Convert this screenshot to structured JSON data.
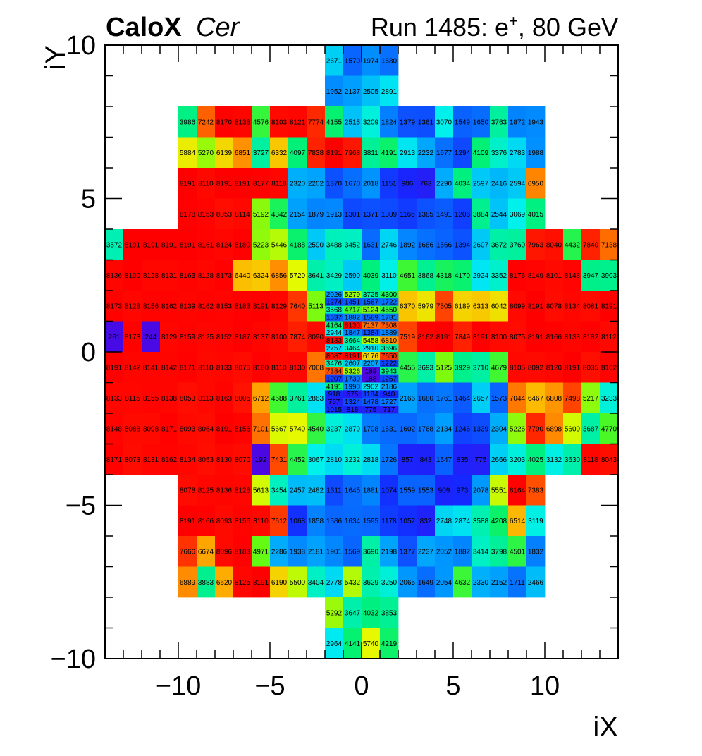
{
  "header": {
    "experiment": "CaloX",
    "channel": "Cer",
    "run_prefix": "Run 1485: e",
    "run_superscript": "+",
    "run_suffix": ", 80 GeV"
  },
  "chart_data": {
    "type": "heatmap",
    "xlabel": "iX",
    "ylabel": "iY",
    "xlim": [
      -14,
      14
    ],
    "ylim": [
      -10,
      10
    ],
    "x_ticks": [
      "−10",
      "−5",
      "0",
      "5",
      "10"
    ],
    "x_tick_values": [
      -10,
      -5,
      0,
      5,
      10
    ],
    "y_ticks": [
      "−10",
      "−5",
      "0",
      "5",
      "10"
    ],
    "y_tick_values": [
      -10,
      -5,
      0,
      5,
      10
    ],
    "color_scale": {
      "min": 0,
      "max": 8191,
      "palette": "rainbow"
    },
    "large_towers": [
      {
        "y": 9,
        "x0": -2,
        "values": [
          2671,
          1570,
          1974,
          1680
        ]
      },
      {
        "y": 8,
        "x0": -2,
        "values": [
          1952,
          2137,
          2505,
          2891
        ]
      },
      {
        "y": 7,
        "x0": -10,
        "values": [
          3986,
          7242,
          8170,
          8138,
          4576,
          8103,
          8121,
          7774,
          4155,
          2515,
          3209,
          1824,
          1379,
          1361,
          3070,
          1549,
          1650,
          3763,
          1872,
          1943
        ]
      },
      {
        "y": 6,
        "x0": -10,
        "values": [
          5884,
          5270,
          6139,
          6851,
          3727,
          6332,
          4097,
          7838,
          8191,
          7968,
          3811,
          4191,
          2913,
          2232,
          1677,
          1294,
          4109,
          3376,
          2783,
          1988
        ]
      },
      {
        "y": 5,
        "x0": -10,
        "values": [
          8191,
          8110,
          8191,
          8191,
          8177,
          8118,
          2320,
          2202,
          1370,
          1670,
          2018,
          1151,
          906,
          763,
          2290,
          4034,
          2597,
          2416,
          2594,
          6950
        ]
      },
      {
        "y": 4,
        "x0": -10,
        "values": [
          8178,
          8153,
          8053,
          8114,
          5192,
          4342,
          2154,
          1879,
          1913,
          1301,
          1371,
          1309,
          1165,
          1385,
          1491,
          1206,
          3884,
          2544,
          3069,
          4015
        ]
      },
      {
        "y": 3,
        "x0": -14,
        "values": [
          3572,
          8191,
          8191,
          8191,
          8191,
          8161,
          8124,
          8180,
          5223,
          5446,
          4188,
          2590,
          3488,
          3452,
          1631,
          2746,
          1892,
          1686,
          1566,
          1394,
          2607,
          3672,
          3760,
          7963,
          8040,
          4432,
          7840,
          7138
        ]
      },
      {
        "y": 2,
        "x0": -14,
        "values": [
          8136,
          8190,
          8128,
          8131,
          8163,
          8128,
          8173,
          6440,
          6324,
          6856,
          5720,
          3641,
          3429,
          2590,
          4039,
          3110,
          4651,
          3868,
          4318,
          4170,
          2924,
          3352,
          8176,
          8149,
          8101,
          8148,
          3947,
          3903
        ]
      },
      {
        "y": 1,
        "x0": -14,
        "values": [
          8173,
          8128,
          8156,
          8162,
          8139,
          8162,
          8153,
          8183,
          8191,
          8129,
          7640,
          5113,
          null,
          null,
          null,
          null,
          6370,
          5979,
          7505,
          6189,
          6313,
          6042,
          8099,
          8191,
          8078,
          8134,
          8081,
          8191
        ]
      },
      {
        "y": 0,
        "x0": -14,
        "values": [
          261,
          8173,
          244,
          8129,
          8159,
          8125,
          8152,
          8187,
          8137,
          8100,
          7874,
          8090,
          null,
          null,
          null,
          null,
          7519,
          8162,
          8191,
          7849,
          8191,
          8100,
          8075,
          8191,
          8166,
          8138,
          8182,
          8112
        ]
      },
      {
        "y": -1,
        "x0": -14,
        "values": [
          8191,
          8142,
          8141,
          8142,
          8171,
          8110,
          8133,
          8075,
          8180,
          8110,
          8130,
          7068,
          null,
          null,
          null,
          null,
          4455,
          3693,
          5125,
          3929,
          3710,
          4679,
          8105,
          8092,
          8120,
          8191,
          8035,
          8162
        ]
      },
      {
        "y": -2,
        "x0": -14,
        "values": [
          8133,
          8115,
          8155,
          8138,
          8053,
          8113,
          8163,
          8005,
          6712,
          4688,
          3761,
          2863,
          null,
          null,
          null,
          null,
          2166,
          1680,
          1761,
          1464,
          2657,
          1573,
          7044,
          6467,
          6808,
          7498,
          5217,
          3233
        ]
      },
      {
        "y": -3,
        "x0": -14,
        "values": [
          8148,
          8088,
          8098,
          8171,
          8093,
          8064,
          8191,
          8156,
          7101,
          5667,
          5740,
          4540,
          3237,
          2879,
          1798,
          1631,
          1602,
          1768,
          2134,
          1246,
          1339,
          2304,
          5226,
          7790,
          6898,
          5609,
          3687,
          4770
        ]
      },
      {
        "y": -4,
        "x0": -14,
        "values": [
          8171,
          8073,
          8131,
          8162,
          8134,
          8053,
          8130,
          8070,
          192,
          7431,
          4452,
          3067,
          2810,
          3232,
          2818,
          1726,
          857,
          843,
          1547,
          835,
          775,
          2666,
          3203,
          4025,
          3132,
          3630,
          8118,
          8043
        ]
      },
      {
        "y": -5,
        "x0": -10,
        "values": [
          8078,
          8125,
          8136,
          8128,
          5613,
          3454,
          2457,
          2482,
          1311,
          1645,
          1881,
          1074,
          1559,
          1553,
          909,
          973,
          2078,
          5551,
          8164,
          7383
        ]
      },
      {
        "y": -6,
        "x0": -10,
        "values": [
          8191,
          8166,
          8093,
          8156,
          8110,
          7612,
          1068,
          1858,
          1586,
          1634,
          1595,
          1178,
          1052,
          832,
          2748,
          2874,
          3588,
          4208,
          6514,
          3119
        ]
      },
      {
        "y": -7,
        "x0": -10,
        "values": [
          7666,
          6674,
          8096,
          8183,
          4971,
          2286,
          1938,
          2181,
          1901,
          1569,
          3690,
          2198,
          1377,
          2237,
          2052,
          1882,
          3414,
          3798,
          4501,
          1832
        ]
      },
      {
        "y": -8,
        "x0": -10,
        "values": [
          6889,
          3883,
          6620,
          8125,
          8191,
          6190,
          5500,
          3404,
          2778,
          5432,
          3629,
          3250,
          2065,
          1649,
          2054,
          4632,
          2330,
          2152,
          1711,
          2466
        ]
      },
      {
        "y": -9,
        "x0": -2,
        "values": [
          5292,
          3647,
          4032,
          3853
        ]
      },
      {
        "y": -10,
        "x0": -2,
        "values": [
          2964,
          4141,
          5740,
          4219
        ]
      }
    ],
    "fine_towers": {
      "x0": -2,
      "x1": 2,
      "y_top": 2,
      "y_bottom": -2,
      "row_height": 0.3333,
      "rows": [
        [
          2026,
          5279,
          3725,
          4300
        ],
        [
          1274,
          1451,
          1587,
          1722
        ],
        [
          3568,
          4717,
          5124,
          4550
        ],
        [
          1537,
          1882,
          1589,
          1781
        ],
        [
          4164,
          8130,
          7137,
          7308
        ],
        [
          2944,
          1847,
          1384,
          1889
        ],
        [
          8133,
          3664,
          5458,
          6810
        ],
        [
          2757,
          3464,
          2910,
          3696
        ],
        [
          8087,
          8191,
          6176,
          7650
        ],
        [
          3476,
          2607,
          2207,
          1222
        ],
        [
          7384,
          5326,
          189,
          3943
        ],
        [
          1207,
          1739,
          188,
          1267
        ],
        [
          4191,
          1990,
          2902,
          2186
        ],
        [
          918,
          675,
          1184,
          940
        ],
        [
          757,
          1324,
          1478,
          1727
        ],
        [
          1015,
          818,
          775,
          717
        ]
      ]
    }
  }
}
